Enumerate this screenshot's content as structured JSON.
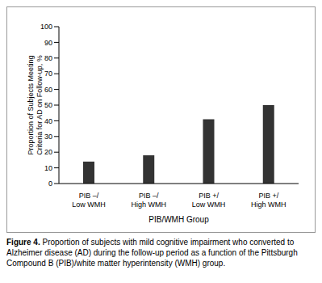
{
  "chart_data": {
    "type": "bar",
    "caption_label": "Figure 4.",
    "caption": "Proportion of subjects with mild cognitive impairment who converted to Alzheimer disease (AD) during the follow-up period as a function of the Pittsburgh Compound B (PIB)/white matter hyperintensity (WMH) group.",
    "x_label": "PIB/WMH Group",
    "y_label": "Proportion of Subjects Meeting Criteria for AD on Follow-up, %",
    "categories": [
      "PIB –/ Low WMH",
      "PIB –/ High WMH",
      "PIB +/ Low WMH",
      "PIB +/ High WMH"
    ],
    "values": [
      14,
      18,
      41,
      50
    ],
    "color": "#333333",
    "ylim": [
      0,
      100
    ],
    "yticks": [
      0,
      10,
      20,
      30,
      40,
      50,
      60,
      70,
      80,
      90,
      100
    ],
    "grid": false
  }
}
